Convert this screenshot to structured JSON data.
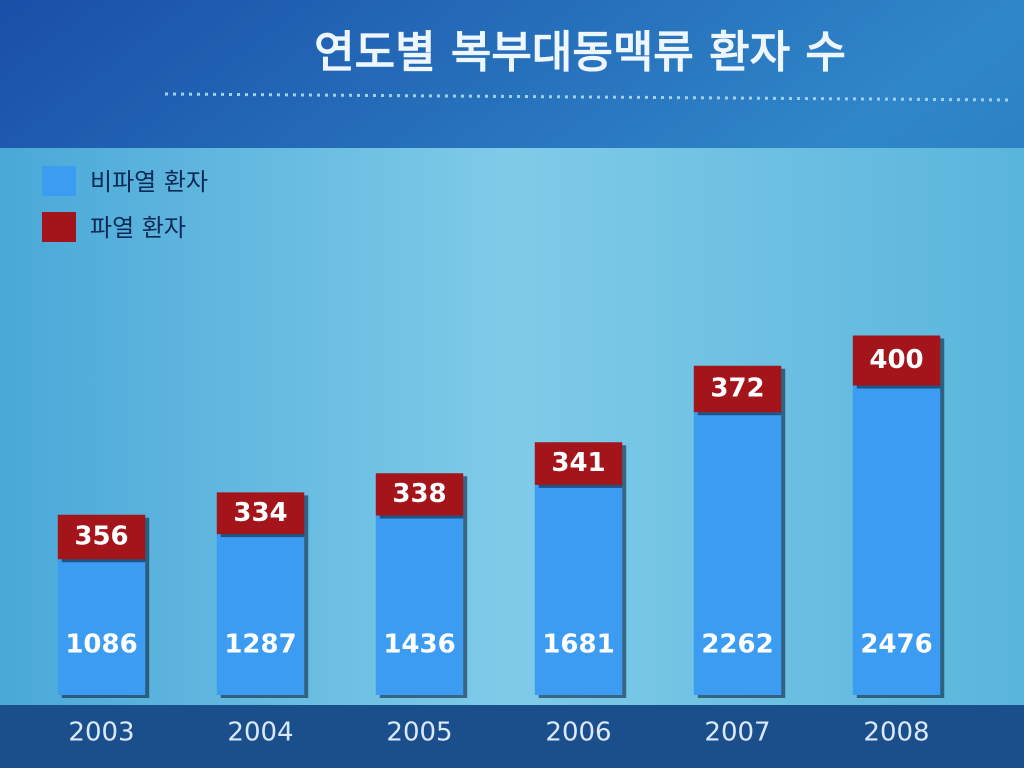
{
  "chart_data": {
    "type": "stacked_bar",
    "title": "연도별 복부대동맥류 환자 수",
    "categories": [
      "2003",
      "2004",
      "2005",
      "2006",
      "2007",
      "2008"
    ],
    "series": [
      {
        "name": "비파열 환자",
        "color": "#3b9cf2",
        "values": [
          1086,
          1287,
          1436,
          1681,
          2262,
          2476
        ]
      },
      {
        "name": "파열 환자",
        "color": "#a3141b",
        "values": [
          356,
          334,
          338,
          341,
          372,
          400
        ]
      }
    ],
    "ylim": [
      0,
      4400
    ]
  }
}
